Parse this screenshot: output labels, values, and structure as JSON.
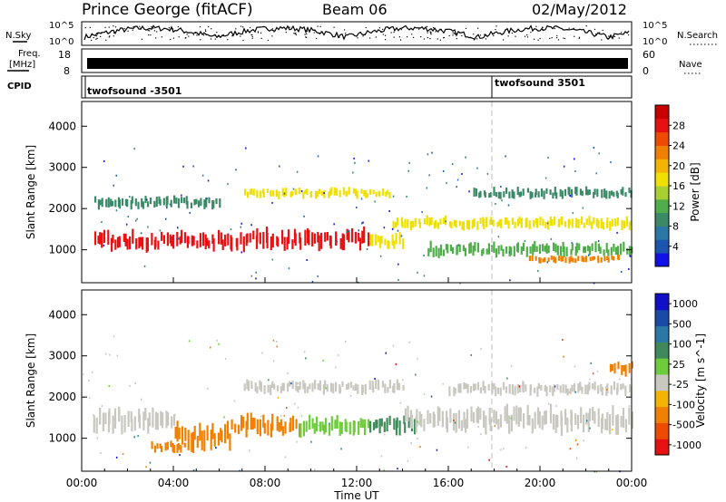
{
  "header": {
    "station": "Prince George (fitACF)",
    "beam": "Beam 06",
    "date": "02/May/2012"
  },
  "sky_panel": {
    "left_label": "N.Sky",
    "right_label": "N.Search",
    "left_ticks": [
      "10^5",
      "10^0"
    ],
    "right_ticks": [
      "10^5",
      "10^0"
    ]
  },
  "freq_panel": {
    "left_label_1": "Freq.",
    "left_label_2": "[MHz]",
    "right_label": "Nave",
    "left_ticks": [
      "18",
      "8"
    ],
    "right_ticks": [
      "60",
      "0"
    ]
  },
  "cpid_panel": {
    "label": "CPID",
    "entries": [
      {
        "text": "twofsound -3501",
        "start_hour": 0
      },
      {
        "text": "twofsound 3501",
        "start_hour": 18
      }
    ]
  },
  "x_axis": {
    "label": "Time UT",
    "ticks": [
      "00:00",
      "04:00",
      "08:00",
      "12:00",
      "16:00",
      "20:00",
      "00:00"
    ],
    "range_hours": [
      0,
      24
    ]
  },
  "chart_data": [
    {
      "type": "heatmap",
      "panel": "power",
      "ylabel": "Slant Range [km]",
      "yticks": [
        1000,
        2000,
        3000,
        4000
      ],
      "ylim": [
        200,
        4600
      ],
      "xlim_hours": [
        0,
        24
      ],
      "colorbar": {
        "label": "Power [dB]",
        "ticks": [
          "28",
          "24",
          "20",
          "16",
          "12",
          "8",
          "4"
        ],
        "colors": [
          "#1010e8",
          "#1a55b0",
          "#2a78a8",
          "#3a8a68",
          "#4fae4a",
          "#a8d030",
          "#f0e000",
          "#f5b400",
          "#f28000",
          "#ee4a00",
          "#e81010",
          "#c80000"
        ]
      },
      "bands": [
        {
          "start_hour": 0.5,
          "end_hour": 6.5,
          "center_km": 1220,
          "width_km": 380,
          "level": 26
        },
        {
          "start_hour": 6.5,
          "end_hour": 12.5,
          "center_km": 1250,
          "width_km": 420,
          "level": 25
        },
        {
          "start_hour": 12.5,
          "end_hour": 14.0,
          "center_km": 1200,
          "width_km": 300,
          "level": 16
        },
        {
          "start_hour": 0.5,
          "end_hour": 6.0,
          "center_km": 2150,
          "width_km": 250,
          "level": 8
        },
        {
          "start_hour": 7.0,
          "end_hour": 13.5,
          "center_km": 2380,
          "width_km": 200,
          "level": 15
        },
        {
          "start_hour": 13.5,
          "end_hour": 24.0,
          "center_km": 1650,
          "width_km": 250,
          "level": 17
        },
        {
          "start_hour": 15.0,
          "end_hour": 24.0,
          "center_km": 1000,
          "width_km": 280,
          "level": 11
        },
        {
          "start_hour": 17.0,
          "end_hour": 24.0,
          "center_km": 2380,
          "width_km": 220,
          "level": 9
        },
        {
          "start_hour": 19.5,
          "end_hour": 23.5,
          "center_km": 780,
          "width_km": 160,
          "level": 20
        }
      ]
    },
    {
      "type": "heatmap",
      "panel": "velocity",
      "ylabel": "Slant Range [km]",
      "yticks": [
        1000,
        2000,
        3000,
        4000
      ],
      "ylim": [
        200,
        4600
      ],
      "xlim_hours": [
        0,
        24
      ],
      "colorbar": {
        "label": "Velocity [m s^-1]",
        "ticks": [
          "1000",
          "500",
          "100",
          "25",
          "-25",
          "-100",
          "-500",
          "-1000"
        ],
        "colors": [
          "#e81010",
          "#ee4a00",
          "#f28000",
          "#f5b400",
          "#c8c8c0",
          "#6ccc3a",
          "#3e8a5a",
          "#2a78a8",
          "#1a4aa8",
          "#1010c8"
        ]
      },
      "bands": [
        {
          "start_hour": 0.5,
          "end_hour": 4.0,
          "center_km": 1450,
          "width_km": 500,
          "value": 0
        },
        {
          "start_hour": 4.0,
          "end_hour": 6.5,
          "center_km": 1050,
          "width_km": 520,
          "value": -300
        },
        {
          "start_hour": 3.0,
          "end_hour": 4.5,
          "center_km": 800,
          "width_km": 220,
          "value": -150
        },
        {
          "start_hour": 6.5,
          "end_hour": 9.5,
          "center_km": 1300,
          "width_km": 420,
          "value": -120
        },
        {
          "start_hour": 9.5,
          "end_hour": 12.5,
          "center_km": 1300,
          "width_km": 380,
          "value": 90
        },
        {
          "start_hour": 12.5,
          "end_hour": 14.5,
          "center_km": 1350,
          "width_km": 380,
          "value": 150
        },
        {
          "start_hour": 7.0,
          "end_hour": 14.0,
          "center_km": 2250,
          "width_km": 260,
          "value": 10
        },
        {
          "start_hour": 14.0,
          "end_hour": 24.0,
          "center_km": 1450,
          "width_km": 500,
          "value": 0
        },
        {
          "start_hour": 16.0,
          "end_hour": 24.0,
          "center_km": 2200,
          "width_km": 260,
          "value": -10
        },
        {
          "start_hour": 23.0,
          "end_hour": 24.0,
          "center_km": 2700,
          "width_km": 300,
          "value": -250
        }
      ]
    }
  ]
}
